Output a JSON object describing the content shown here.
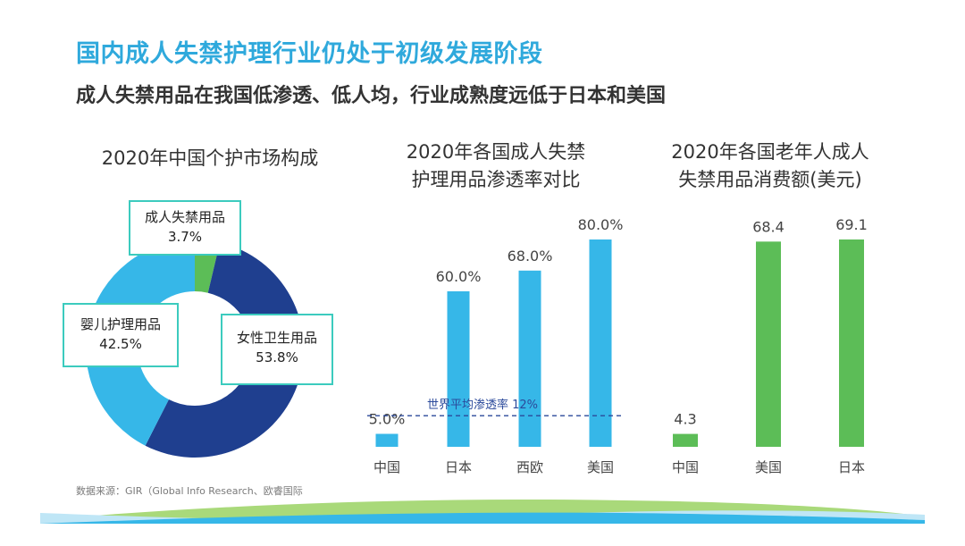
{
  "title": "国内成人失禁护理行业仍处于初级发展阶段",
  "subtitle": "成人失禁用品在我国低渗透、低人均，行业成熟度远低于日本和美国",
  "source": "数据来源：GIR（Global Info Research、欧睿国际",
  "colors": {
    "title": "#2fa9dc",
    "light_blue": "#36b7e8",
    "dark_blue": "#1f3f8f",
    "green": "#5cbd57",
    "box_border": "#3ccbbe",
    "dashed_line": "#2b4a9b"
  },
  "chart_data": [
    {
      "type": "pie",
      "title_lines": [
        "2020年中国个护市场构成"
      ],
      "slices": [
        {
          "name": "成人失禁用品",
          "value": 3.7,
          "label": "3.7%",
          "color": "#5cbd57"
        },
        {
          "name": "女性卫生用品",
          "value": 53.8,
          "label": "53.8%",
          "color": "#1f3f8f"
        },
        {
          "name": "婴儿护理用品",
          "value": 42.5,
          "label": "42.5%",
          "color": "#36b7e8"
        }
      ]
    },
    {
      "type": "bar",
      "title_lines": [
        "2020年各国成人失禁",
        "护理用品渗透率对比"
      ],
      "categories": [
        "中国",
        "日本",
        "西欧",
        "美国"
      ],
      "values": [
        5.0,
        60.0,
        68.0,
        80.0
      ],
      "value_labels": [
        "5.0%",
        "60.0%",
        "68.0%",
        "80.0%"
      ],
      "color": "#36b7e8",
      "ylim": [
        0,
        80
      ],
      "reference_line": {
        "value": 12,
        "label": "世界平均渗透率 12%"
      }
    },
    {
      "type": "bar",
      "title_lines": [
        "2020年各国老年人成人",
        "失禁用品消费额(美元)"
      ],
      "categories": [
        "中国",
        "美国",
        "日本"
      ],
      "values": [
        4.3,
        68.4,
        69.1
      ],
      "value_labels": [
        "4.3",
        "68.4",
        "69.1"
      ],
      "color": "#5cbd57",
      "ylim": [
        0,
        69.1
      ]
    }
  ]
}
